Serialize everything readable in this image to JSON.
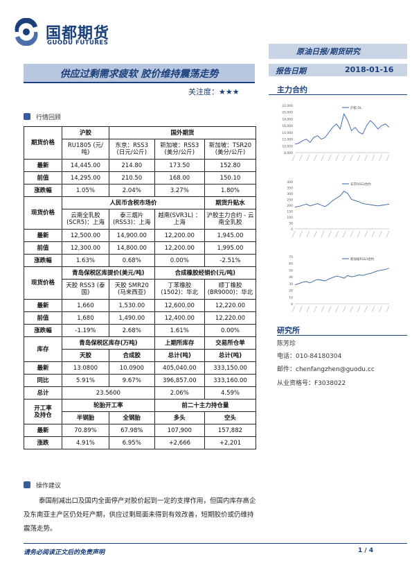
{
  "header": {
    "company_cn": "国都期货",
    "company_en": "GUODU FUTURES",
    "corner_label": "原油日报/期货研究",
    "title": "供应过剩需求疲软 胶价维持震荡走势",
    "attention_label": "关注度：",
    "attention_stars": "★★★",
    "date_label": "报告日期",
    "date_value": "2018-01-16",
    "main_contract_label": "主力合约"
  },
  "sections": {
    "market_review": "行情回顾",
    "advice": "操作建议"
  },
  "table": {
    "block1": {
      "label": "期货价格",
      "col_huijiao": "沪胶",
      "col_foreign": "国外期货",
      "subheads": [
        "RU1805 (元/吨)",
        "东京：RSS3 (日元/公斤)",
        "新加坡：RSS3 (美分/公斤)",
        "新加坡：TSR20 (美分/公斤)"
      ],
      "rows": [
        {
          "label": "最新",
          "cells": [
            "14,445.00",
            "214.80",
            "173.50",
            "152.80"
          ]
        },
        {
          "label": "前值",
          "cells": [
            "14,295.00",
            "210.50",
            "168.00",
            "150.10"
          ]
        },
        {
          "label": "涨跌幅",
          "cells": [
            "1.05%",
            "2.04%",
            "3.27%",
            "1.80%"
          ]
        }
      ]
    },
    "block2": {
      "label": "现货价格",
      "col_rmb": "人民币含税市场价",
      "col_basis": "期货升贴水",
      "subheads": [
        "云南全乳胶 (SCR5)：上海",
        "泰三烟片 (RSS3)：上海",
        "越南(SVR3L) ：上海",
        "沪胶主力合约 - 云南全乳胶"
      ],
      "rows": [
        {
          "label": "最新",
          "cells": [
            "12,500.00",
            "14,900.00",
            "12,200.00",
            "1,945.00"
          ]
        },
        {
          "label": "前值",
          "cells": [
            "12,300.00",
            "14,800.00",
            "12,200.00",
            "1,995.00"
          ]
        },
        {
          "label": "涨跌幅",
          "cells": [
            "1.63%",
            "0.68%",
            "0.00%",
            "-2.51%"
          ]
        }
      ]
    },
    "block3": {
      "label": "现货价格",
      "col_qingdao": "青岛保税区库提价(美元/吨)",
      "col_synthetic": "合成橡胶经销价(元/吨)",
      "subheads": [
        "天胶 RSS3 (泰国)",
        "天胶 SMR20 (马来西亚)",
        "丁苯橡胶 (1502)：华北",
        "顺丁橡胶 (BR9000)：华北"
      ],
      "rows": [
        {
          "label": "最新",
          "cells": [
            "1,660",
            "1,530.00",
            "12,600.00",
            "12,220.00"
          ]
        },
        {
          "label": "前值",
          "cells": [
            "1,680",
            "1,490.00",
            "12,400.00",
            "12,220.00"
          ]
        },
        {
          "label": "涨跌幅",
          "cells": [
            "-1.19%",
            "2.68%",
            "1.61%",
            "0.00%"
          ]
        }
      ]
    },
    "block4": {
      "label": "库存",
      "col_qingdao": "青岛保税区库存(万吨)",
      "col_shfe": "上期所库存",
      "col_warrant": "交易所仓单",
      "subheads": [
        "天胶",
        "合成胶",
        "总计(吨)",
        "总计(吨)"
      ],
      "rows": [
        {
          "label": "最新",
          "cells": [
            "13.0800",
            "10.0900",
            "405,040.00",
            "333,150.00"
          ]
        },
        {
          "label": "同比",
          "cells": [
            "5.91%",
            "9.67%",
            "396,857.00",
            "333,160.00"
          ]
        }
      ],
      "total_label": "总计",
      "total_value": "23.5600",
      "total_pct1": "2.06%",
      "total_pct2": "4.59%"
    },
    "block5": {
      "label_line1": "开工率",
      "label_line2": "及持仓",
      "col_tire": "轮胎开工率",
      "col_positions": "前二十主力持仓量",
      "subheads": [
        "半钢胎",
        "全钢胎",
        "多头",
        "空头"
      ],
      "rows": [
        {
          "label": "最新",
          "cells": [
            "70.89%",
            "67.98%",
            "107,900",
            "157,882"
          ]
        },
        {
          "label": "涨跌",
          "cells": [
            "4.91%",
            "6.95%",
            "+2,666",
            "+2,201"
          ]
        }
      ]
    }
  },
  "advice_text": "泰国削减出口及国内全面停产对胶价起到一定的支撑作用，但国内库存高企及东南亚主产区仍处旺产期，供应过剩局面未得到有效改善，短期胶价或仍维持震荡走势。",
  "research": {
    "title": "研究所",
    "name": "陈芳珍",
    "phone": "电话：010-84180304",
    "email": "邮件：chenfangzhen@guodu.cc",
    "license": "从业资格号：F3038022"
  },
  "footer": {
    "disclaimer": "请务必阅读正文后的免责声明",
    "page": "1 / 4"
  },
  "colors": {
    "brand": "#1a3f7a",
    "series": "#2e5fa8"
  },
  "chart_data": [
    {
      "type": "line",
      "series": [
        {
          "name": "沪胶.DL",
          "values": [
            10500,
            10800,
            11500,
            12000,
            11000,
            12500,
            13000,
            12000,
            12500,
            14000,
            15500,
            16500,
            15000,
            19500,
            17500,
            14500,
            15500,
            14000,
            13500,
            16000,
            17500,
            16500,
            15000,
            16000,
            16500,
            15500
          ]
        }
      ],
      "ylim": [
        8000,
        22000
      ],
      "yticks": [
        "22,000",
        "20,000",
        "18,000",
        "16,000",
        "14,000",
        "12,000",
        "10,000",
        "8,000"
      ]
    },
    {
      "type": "line",
      "series": [
        {
          "name": "东京RSS3合约",
          "values": [
            185,
            190,
            200,
            210,
            195,
            205,
            215,
            200,
            190,
            210,
            240,
            260,
            280,
            320,
            300,
            250,
            240,
            230,
            215,
            210,
            205,
            200,
            195,
            200,
            205,
            210
          ]
        }
      ],
      "ylim": [
        0,
        400
      ],
      "yticks": [
        "400",
        "350",
        "300",
        "250",
        "200",
        "150",
        "100",
        "50",
        "0"
      ]
    },
    {
      "type": "line",
      "series": [
        {
          "name": "新加坡RSS3合约",
          "values": [
            28,
            30,
            32,
            33,
            31,
            34,
            36,
            35,
            34,
            37,
            39,
            41,
            40,
            38,
            42,
            40,
            41,
            43,
            42,
            44,
            45,
            47,
            49,
            50,
            51,
            53
          ]
        }
      ],
      "ylim": [
        0,
        70
      ],
      "yticks": [
        "70",
        "60",
        "50",
        "40",
        "30",
        "20",
        "10",
        "0"
      ]
    }
  ]
}
